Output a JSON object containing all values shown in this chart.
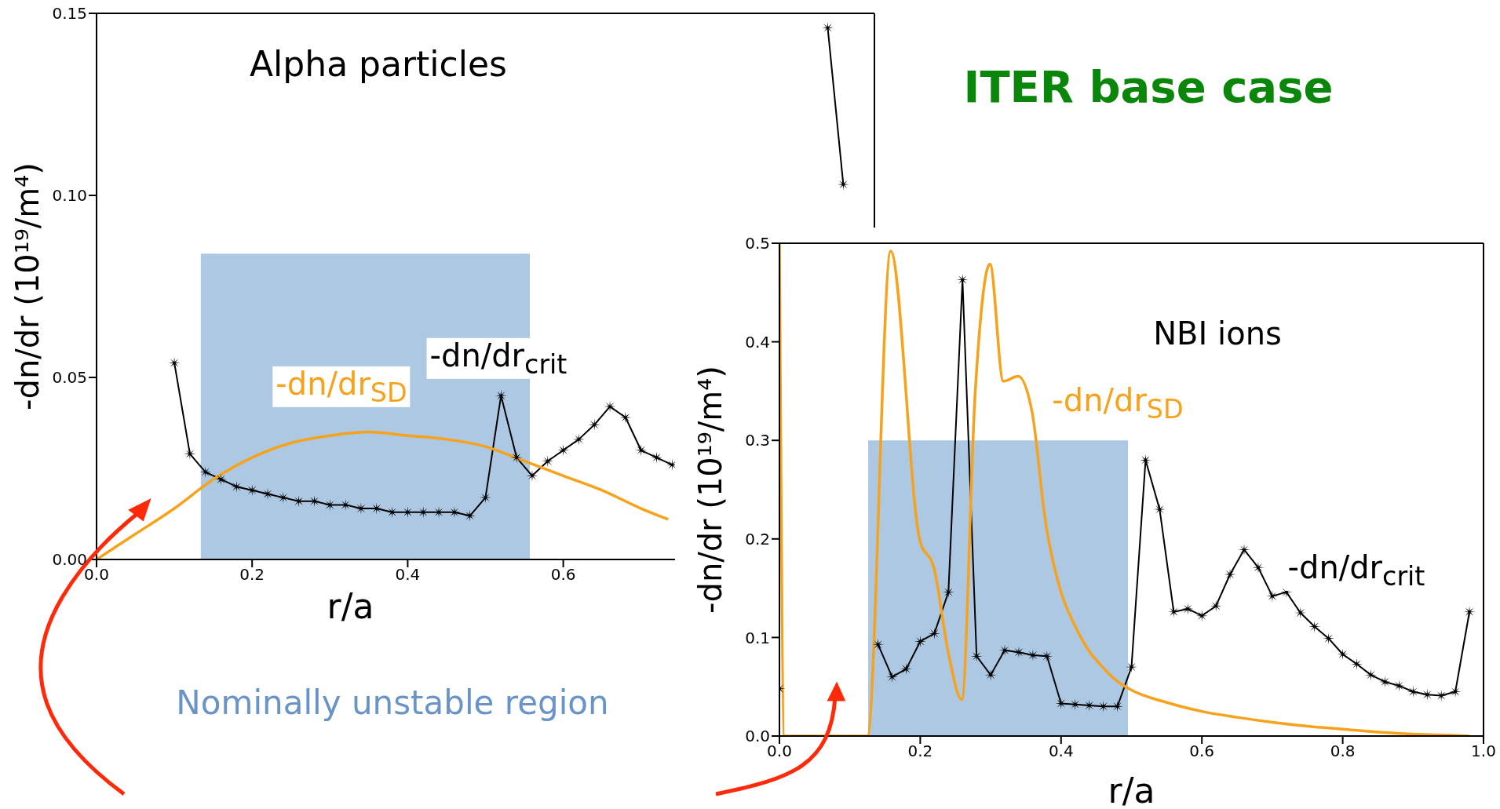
{
  "chart_data": [
    {
      "type": "line",
      "title": "Alpha particles",
      "xlabel": "r/a",
      "ylabel": "-dn/dr (10¹⁹/m⁴)",
      "xlim": [
        0,
        1
      ],
      "xticks": [
        {
          "value": 0,
          "label": "0.0"
        },
        {
          "value": 0.2,
          "label": "0.2"
        },
        {
          "value": 0.4,
          "label": "0.4"
        },
        {
          "value": 0.6,
          "label": "0.6"
        }
      ],
      "ylim": [
        0,
        0.15
      ],
      "yticks": [
        {
          "value": 0,
          "label": "0.00"
        },
        {
          "value": 0.05,
          "label": "0.05"
        },
        {
          "value": 0.1,
          "label": "0.10"
        },
        {
          "value": 0.15,
          "label": "0.15"
        }
      ],
      "annotations": [
        "Nominally unstable region"
      ],
      "series": [
        {
          "type": "area",
          "color": "#adc8e3",
          "x": [
            0.134,
            0.557
          ],
          "values": [
            0.084,
            0.084
          ]
        },
        {
          "name": "-dn/dr$_{crit}$",
          "type": "line",
          "marker": "star",
          "color": "#000000",
          "x": [
            0.1,
            0.12,
            0.14,
            0.16,
            0.18,
            0.2,
            0.22,
            0.24,
            0.26,
            0.28,
            0.3,
            0.32,
            0.34,
            0.36,
            0.38,
            0.4,
            0.42,
            0.44,
            0.46,
            0.48,
            0.5,
            0.52,
            0.54,
            0.56,
            0.58,
            0.6,
            0.62,
            0.64,
            0.66,
            0.68,
            0.7,
            0.72,
            0.74,
            0.76,
            0.94,
            0.96
          ],
          "values": [
            0.054,
            0.029,
            0.024,
            0.022,
            0.02,
            0.019,
            0.018,
            0.017,
            0.016,
            0.016,
            0.015,
            0.015,
            0.014,
            0.014,
            0.013,
            0.013,
            0.013,
            0.013,
            0.013,
            0.012,
            0.017,
            0.045,
            0.028,
            0.023,
            0.027,
            0.03,
            0.033,
            0.037,
            0.042,
            0.039,
            0.03,
            0.028,
            0.026,
            null,
            0.146,
            0.103
          ]
        },
        {
          "name": "-dn/dr$_{SD}$",
          "type": "line",
          "marker": "none",
          "color": "#f7a21b",
          "x": [
            0,
            0.05,
            0.1,
            0.15,
            0.2,
            0.25,
            0.3,
            0.35,
            0.4,
            0.45,
            0.5,
            0.55,
            0.6,
            0.65,
            0.7,
            0.735
          ],
          "values": [
            0,
            0.007,
            0.014,
            0.022,
            0.028,
            0.032,
            0.034,
            0.035,
            0.034,
            0.033,
            0.031,
            0.027,
            0.023,
            0.019,
            0.014,
            0.011
          ]
        }
      ]
    },
    {
      "type": "line",
      "title": "NBI ions",
      "xlabel": "r/a",
      "ylabel": "-dn/dr (10¹⁹/m⁴)",
      "xlim": [
        0,
        1
      ],
      "xticks": [
        {
          "value": 0,
          "label": "0.0"
        },
        {
          "value": 0.2,
          "label": "0.2"
        },
        {
          "value": 0.4,
          "label": "0.4"
        },
        {
          "value": 0.6,
          "label": "0.6"
        },
        {
          "value": 0.8,
          "label": "0.8"
        },
        {
          "value": 1,
          "label": "1.0"
        }
      ],
      "ylim": [
        0,
        0.5
      ],
      "yticks": [
        {
          "value": 0,
          "label": "0.0"
        },
        {
          "value": 0.1,
          "label": "0.1"
        },
        {
          "value": 0.2,
          "label": "0.2"
        },
        {
          "value": 0.3,
          "label": "0.3"
        },
        {
          "value": 0.4,
          "label": "0.4"
        },
        {
          "value": 0.5,
          "label": "0.5"
        }
      ],
      "annotations": [
        "ITER base case"
      ],
      "series": [
        {
          "type": "area",
          "color": "#adc8e3",
          "x": [
            0.126,
            0.495
          ],
          "values": [
            0.3,
            0.3
          ]
        },
        {
          "name": "-dn/dr$_{crit}$",
          "type": "line",
          "marker": "star",
          "color": "#000000",
          "x": [
            0,
            0.02,
            0.14,
            0.16,
            0.18,
            0.2,
            0.22,
            0.24,
            0.26,
            0.28,
            0.3,
            0.32,
            0.34,
            0.36,
            0.38,
            0.4,
            0.42,
            0.44,
            0.46,
            0.48,
            0.5,
            0.52,
            0.54,
            0.56,
            0.58,
            0.6,
            0.62,
            0.64,
            0.66,
            0.68,
            0.7,
            0.72,
            0.74,
            0.76,
            0.78,
            0.8,
            0.82,
            0.84,
            0.86,
            0.88,
            0.9,
            0.92,
            0.94,
            0.96,
            0.98
          ],
          "values": [
            0.048,
            null,
            0.093,
            0.06,
            0.068,
            0.096,
            0.104,
            0.146,
            0.463,
            0.081,
            0.062,
            0.087,
            0.085,
            0.082,
            0.081,
            0.033,
            0.032,
            0.031,
            0.03,
            0.03,
            0.07,
            0.28,
            0.23,
            0.126,
            0.129,
            0.122,
            0.132,
            0.164,
            0.189,
            0.171,
            0.142,
            0.146,
            0.125,
            0.111,
            0.099,
            0.083,
            0.073,
            0.062,
            0.055,
            0.051,
            0.045,
            0.042,
            0.041,
            0.045,
            0.126
          ]
        },
        {
          "name": "-dn/dr$_{SD}$",
          "type": "line",
          "marker": "none",
          "color": "#f7a21b",
          "x": [
            0,
            0.007,
            0.125,
            0.158,
            0.199,
            0.22,
            0.24,
            0.259,
            0.278,
            0.299,
            0.318,
            0.339,
            0.359,
            0.378,
            0.399,
            0.419,
            0.439,
            0.459,
            0.479,
            0.499,
            0.55,
            0.6,
            0.65,
            0.7,
            0.75,
            0.8,
            0.85,
            0.9,
            0.95,
            0.98
          ],
          "values": [
            0.5,
            0,
            0,
            0.492,
            0.2,
            0.169,
            0.084,
            0.037,
            0.348,
            0.479,
            0.36,
            0.365,
            0.328,
            0.217,
            0.148,
            0.113,
            0.087,
            0.07,
            0.056,
            0.047,
            0.034,
            0.025,
            0.019,
            0.014,
            0.01,
            0.007,
            0.004,
            0.002,
            0.001,
            0
          ]
        }
      ]
    }
  ]
}
